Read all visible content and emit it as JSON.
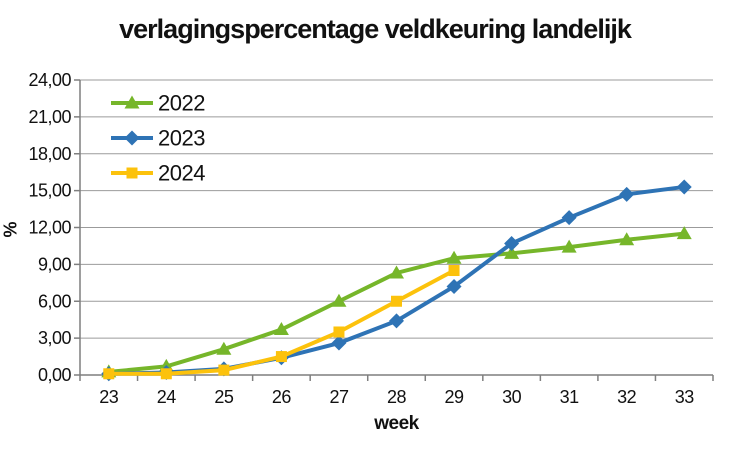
{
  "chart_data": {
    "type": "line",
    "title": "verlagingspercentage veldkeuring landelijk",
    "xlabel": "week",
    "ylabel": "%",
    "categories": [
      23,
      24,
      25,
      26,
      27,
      28,
      29,
      30,
      31,
      32,
      33
    ],
    "ylim": [
      0,
      24
    ],
    "ytick_step": 3,
    "ytick_labels": [
      "0,00",
      "3,00",
      "6,00",
      "9,00",
      "12,00",
      "15,00",
      "18,00",
      "21,00",
      "24,00"
    ],
    "grid": true,
    "legend_position": "inside-top-left",
    "series": [
      {
        "name": "2022",
        "color": "#76b62a",
        "marker": "triangle",
        "values": [
          0.25,
          0.7,
          2.1,
          3.7,
          6.0,
          8.3,
          9.5,
          9.9,
          10.4,
          11.0,
          11.5
        ]
      },
      {
        "name": "2023",
        "color": "#2e73b5",
        "marker": "diamond",
        "values": [
          0.1,
          0.2,
          0.5,
          1.4,
          2.6,
          4.4,
          7.2,
          10.7,
          12.8,
          14.7,
          15.3
        ]
      },
      {
        "name": "2024",
        "color": "#fcc20c",
        "marker": "square",
        "values": [
          0.1,
          0.1,
          0.4,
          1.5,
          3.5,
          6.0,
          8.5
        ]
      }
    ],
    "colors": {
      "gridline": "#9b9b9b",
      "axis": "#7f7f7f",
      "text": "#111111",
      "background": "#ffffff"
    }
  }
}
